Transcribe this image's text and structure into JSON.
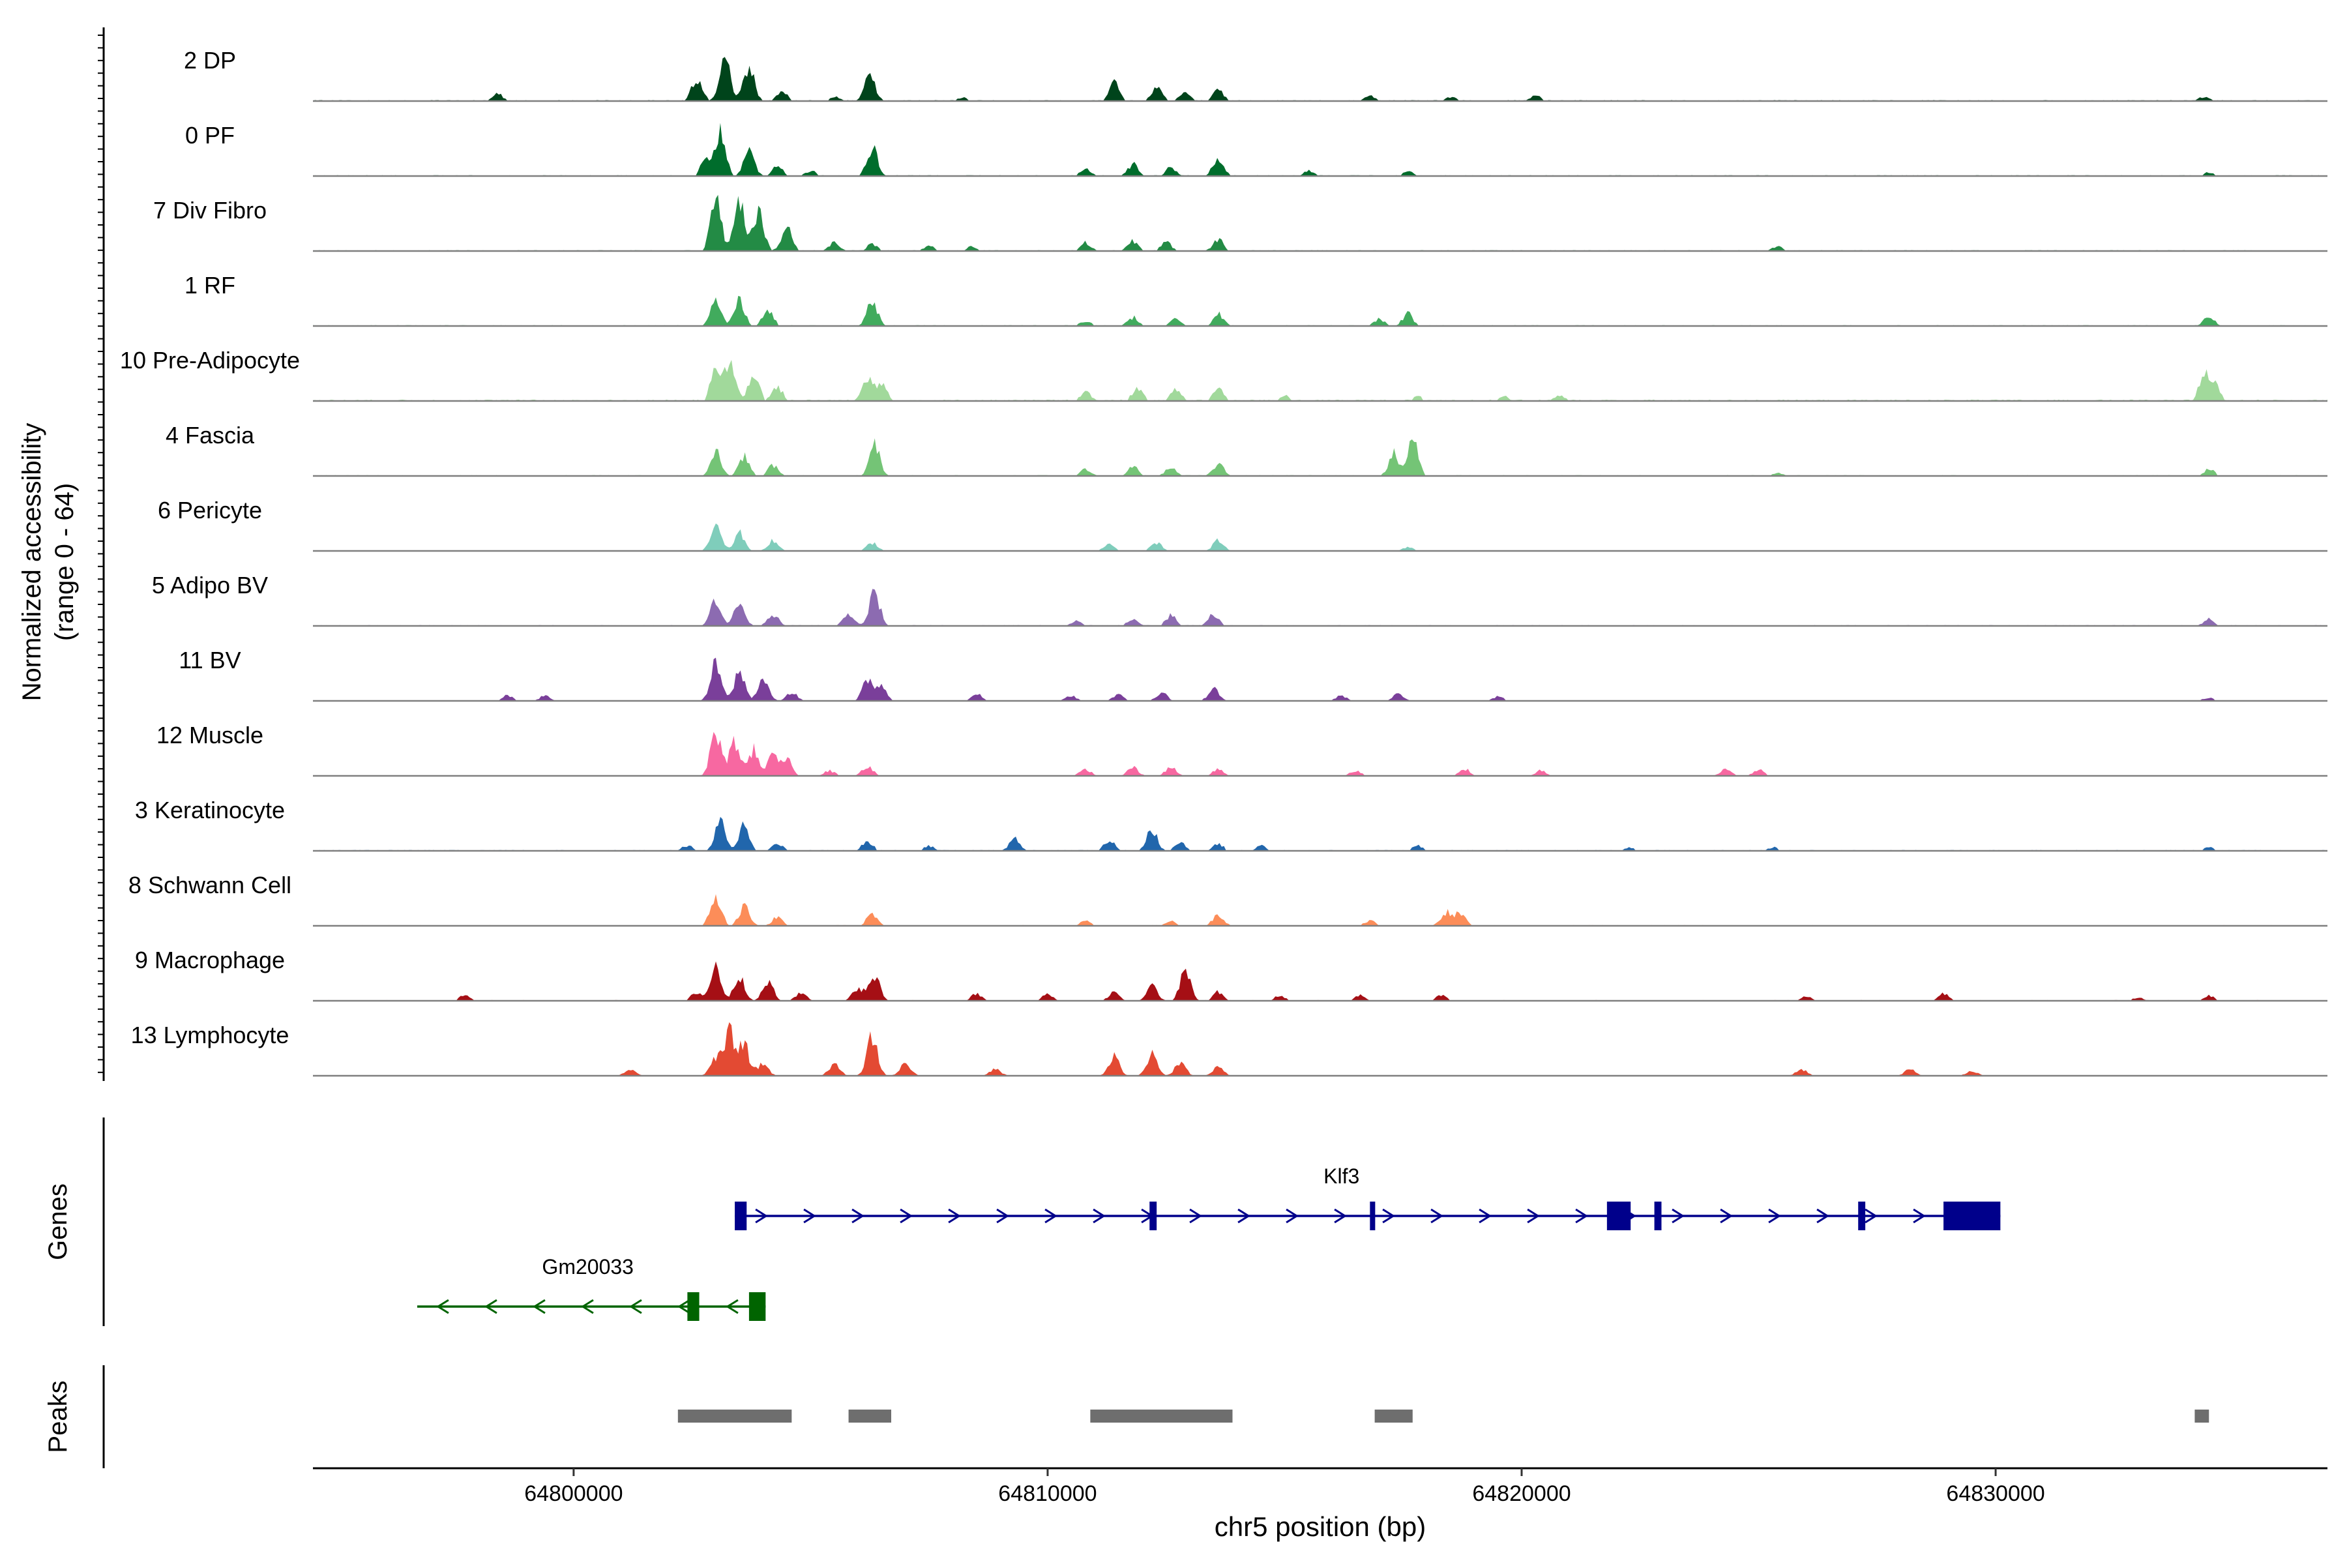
{
  "chart_data": {
    "type": "area",
    "title": "",
    "xlabel": "chr5 position (bp)",
    "ylabel_line1": "Normalized accessibility",
    "ylabel_line2": "(range 0 - 64)",
    "xlim": [
      64794500,
      64837000
    ],
    "ylim": [
      0,
      64
    ],
    "xticks": [
      {
        "value": 64800000,
        "label": "64800000"
      },
      {
        "value": 64810000,
        "label": "64810000"
      },
      {
        "value": 64820000,
        "label": "64820000"
      },
      {
        "value": 64830000,
        "label": "64830000"
      }
    ],
    "panel_labels": {
      "genes": "Genes",
      "peaks": "Peaks"
    },
    "tracks": [
      {
        "name": "2 DP",
        "color": "#00441b",
        "peaks": [
          [
            64798400,
            8
          ],
          [
            64802600,
            26
          ],
          [
            64803200,
            48
          ],
          [
            64803700,
            38
          ],
          [
            64804400,
            12
          ],
          [
            64805500,
            6
          ],
          [
            64806250,
            30
          ],
          [
            64808200,
            4
          ],
          [
            64811400,
            22
          ],
          [
            64812300,
            18
          ],
          [
            64812900,
            10
          ],
          [
            64813600,
            12
          ],
          [
            64816800,
            6
          ],
          [
            64818500,
            5
          ],
          [
            64820300,
            6
          ],
          [
            64834400,
            5
          ]
        ],
        "noise": 1.8
      },
      {
        "name": "0 PF",
        "color": "#006d2c",
        "peaks": [
          [
            64802800,
            22
          ],
          [
            64803100,
            48
          ],
          [
            64803700,
            30
          ],
          [
            64804300,
            12
          ],
          [
            64805000,
            6
          ],
          [
            64806300,
            32
          ],
          [
            64810800,
            8
          ],
          [
            64811800,
            14
          ],
          [
            64812600,
            10
          ],
          [
            64813600,
            22
          ],
          [
            64815500,
            6
          ],
          [
            64817600,
            5
          ],
          [
            64834500,
            4
          ]
        ],
        "noise": 1.6
      },
      {
        "name": "7 Div Fibro",
        "color": "#238b45",
        "peaks": [
          [
            64803000,
            60
          ],
          [
            64803500,
            62
          ],
          [
            64803900,
            48
          ],
          [
            64804500,
            26
          ],
          [
            64805500,
            10
          ],
          [
            64806300,
            8
          ],
          [
            64807500,
            6
          ],
          [
            64808400,
            5
          ],
          [
            64810800,
            10
          ],
          [
            64811800,
            12
          ],
          [
            64812500,
            10
          ],
          [
            64813600,
            14
          ],
          [
            64825400,
            5
          ]
        ],
        "noise": 1.6
      },
      {
        "name": "1 RF",
        "color": "#41ab5d",
        "peaks": [
          [
            64803000,
            28
          ],
          [
            64803500,
            30
          ],
          [
            64804100,
            18
          ],
          [
            64806300,
            30
          ],
          [
            64810800,
            6
          ],
          [
            64811800,
            10
          ],
          [
            64812700,
            8
          ],
          [
            64813600,
            14
          ],
          [
            64817000,
            8
          ],
          [
            64817600,
            14
          ],
          [
            64834500,
            12
          ]
        ],
        "noise": 1.5
      },
      {
        "name": "10 Pre-Adipocyte",
        "color": "#a1d99b",
        "peaks": [
          [
            64803000,
            36
          ],
          [
            64803300,
            46
          ],
          [
            64803800,
            32
          ],
          [
            64804300,
            16
          ],
          [
            64806200,
            26
          ],
          [
            64806500,
            22
          ],
          [
            64810800,
            10
          ],
          [
            64811900,
            16
          ],
          [
            64812700,
            14
          ],
          [
            64813600,
            14
          ],
          [
            64815000,
            6
          ],
          [
            64817800,
            6
          ],
          [
            64819600,
            6
          ],
          [
            64820800,
            6
          ],
          [
            64834400,
            28
          ],
          [
            64834600,
            22
          ]
        ],
        "noise": 2.4
      },
      {
        "name": "4 Fascia",
        "color": "#74c476",
        "peaks": [
          [
            64803000,
            28
          ],
          [
            64803600,
            22
          ],
          [
            64804200,
            12
          ],
          [
            64806350,
            36
          ],
          [
            64810800,
            8
          ],
          [
            64811800,
            12
          ],
          [
            64812600,
            10
          ],
          [
            64813600,
            14
          ],
          [
            64817300,
            26
          ],
          [
            64817700,
            42
          ],
          [
            64825400,
            4
          ],
          [
            64834500,
            8
          ]
        ],
        "noise": 1.5
      },
      {
        "name": "6 Pericyte",
        "color": "#7fcdbb",
        "peaks": [
          [
            64803000,
            28
          ],
          [
            64803500,
            20
          ],
          [
            64804200,
            12
          ],
          [
            64806300,
            10
          ],
          [
            64811300,
            8
          ],
          [
            64812300,
            10
          ],
          [
            64813600,
            12
          ],
          [
            64817600,
            4
          ]
        ],
        "noise": 1.2
      },
      {
        "name": "5 Adipo BV",
        "color": "#8c6bb1",
        "peaks": [
          [
            64803000,
            32
          ],
          [
            64803500,
            26
          ],
          [
            64804200,
            14
          ],
          [
            64805800,
            14
          ],
          [
            64806350,
            38
          ],
          [
            64810600,
            6
          ],
          [
            64811800,
            8
          ],
          [
            64812600,
            12
          ],
          [
            64813500,
            14
          ],
          [
            64834500,
            8
          ]
        ],
        "noise": 1.5
      },
      {
        "name": "11 BV",
        "color": "#7a3f9a",
        "peaks": [
          [
            64798600,
            6
          ],
          [
            64799400,
            6
          ],
          [
            64803000,
            42
          ],
          [
            64803500,
            34
          ],
          [
            64804000,
            26
          ],
          [
            64804600,
            10
          ],
          [
            64806200,
            24
          ],
          [
            64806500,
            16
          ],
          [
            64808500,
            8
          ],
          [
            64810500,
            6
          ],
          [
            64811500,
            8
          ],
          [
            64812400,
            10
          ],
          [
            64813500,
            14
          ],
          [
            64816200,
            6
          ],
          [
            64817400,
            8
          ],
          [
            64819500,
            5
          ],
          [
            64834500,
            4
          ]
        ],
        "noise": 1.2
      },
      {
        "name": "12 Muscle",
        "color": "#f768a1",
        "peaks": [
          [
            64803000,
            50
          ],
          [
            64803400,
            40
          ],
          [
            64803800,
            30
          ],
          [
            64804200,
            22
          ],
          [
            64804500,
            18
          ],
          [
            64805400,
            6
          ],
          [
            64806200,
            12
          ],
          [
            64810800,
            8
          ],
          [
            64811800,
            10
          ],
          [
            64812600,
            10
          ],
          [
            64813600,
            8
          ],
          [
            64816500,
            6
          ],
          [
            64818800,
            8
          ],
          [
            64820400,
            6
          ],
          [
            64824300,
            8
          ],
          [
            64825000,
            8
          ]
        ],
        "noise": 1.0
      },
      {
        "name": "3 Keratinocyte",
        "color": "#2166ac",
        "peaks": [
          [
            64802400,
            6
          ],
          [
            64803100,
            34
          ],
          [
            64803600,
            30
          ],
          [
            64804300,
            8
          ],
          [
            64806200,
            12
          ],
          [
            64807500,
            6
          ],
          [
            64809300,
            14
          ],
          [
            64811300,
            12
          ],
          [
            64812200,
            24
          ],
          [
            64812800,
            10
          ],
          [
            64813600,
            8
          ],
          [
            64814500,
            6
          ],
          [
            64817800,
            6
          ],
          [
            64822300,
            4
          ],
          [
            64825300,
            4
          ],
          [
            64834500,
            4
          ]
        ],
        "noise": 1.6
      },
      {
        "name": "8 Schwann Cell",
        "color": "#fc8d59",
        "peaks": [
          [
            64803000,
            36
          ],
          [
            64803600,
            22
          ],
          [
            64804300,
            10
          ],
          [
            64806300,
            14
          ],
          [
            64810800,
            6
          ],
          [
            64812600,
            6
          ],
          [
            64813600,
            14
          ],
          [
            64816800,
            6
          ],
          [
            64818400,
            16
          ],
          [
            64818700,
            14
          ]
        ],
        "noise": 1.3
      },
      {
        "name": "9 Macrophage",
        "color": "#a50f15",
        "peaks": [
          [
            64797700,
            6
          ],
          [
            64802600,
            10
          ],
          [
            64803000,
            40
          ],
          [
            64803500,
            30
          ],
          [
            64804100,
            22
          ],
          [
            64804800,
            10
          ],
          [
            64806000,
            16
          ],
          [
            64806350,
            28
          ],
          [
            64808500,
            8
          ],
          [
            64810000,
            8
          ],
          [
            64811400,
            10
          ],
          [
            64812200,
            16
          ],
          [
            64812900,
            34
          ],
          [
            64813600,
            10
          ],
          [
            64814900,
            6
          ],
          [
            64816600,
            6
          ],
          [
            64818300,
            6
          ],
          [
            64826000,
            5
          ],
          [
            64828900,
            8
          ],
          [
            64833000,
            4
          ],
          [
            64834500,
            6
          ]
        ],
        "noise": 1.3
      },
      {
        "name": "13 Lymphocyte",
        "color": "#e34a33",
        "peaks": [
          [
            64801200,
            8
          ],
          [
            64803000,
            22
          ],
          [
            64803300,
            48
          ],
          [
            64803600,
            34
          ],
          [
            64804000,
            14
          ],
          [
            64805500,
            14
          ],
          [
            64806300,
            44
          ],
          [
            64807000,
            16
          ],
          [
            64808900,
            8
          ],
          [
            64811400,
            22
          ],
          [
            64812200,
            24
          ],
          [
            64812800,
            16
          ],
          [
            64813600,
            10
          ],
          [
            64825900,
            8
          ],
          [
            64828200,
            8
          ],
          [
            64829500,
            6
          ]
        ],
        "noise": 0.4
      }
    ],
    "genes": [
      {
        "name": "Klf3",
        "strand": "+",
        "color": "#00008b",
        "start": 64803400,
        "end": 64830100,
        "exons": [
          [
            64803400,
            64803650
          ],
          [
            64812150,
            64812300
          ],
          [
            64816800,
            64816900
          ],
          [
            64821800,
            64822300
          ],
          [
            64822800,
            64822950
          ],
          [
            64827100,
            64827250
          ],
          [
            64828900,
            64830100
          ]
        ]
      },
      {
        "name": "Gm20033",
        "strand": "-",
        "color": "#006400",
        "start": 64796700,
        "end": 64804050,
        "exons": [
          [
            64802400,
            64802650
          ],
          [
            64803700,
            64804050
          ]
        ]
      }
    ],
    "peaks_track": [
      [
        64802200,
        64804600
      ],
      [
        64805800,
        64806700
      ],
      [
        64810900,
        64813900
      ],
      [
        64816900,
        64817700
      ],
      [
        64834200,
        64834500
      ]
    ]
  }
}
